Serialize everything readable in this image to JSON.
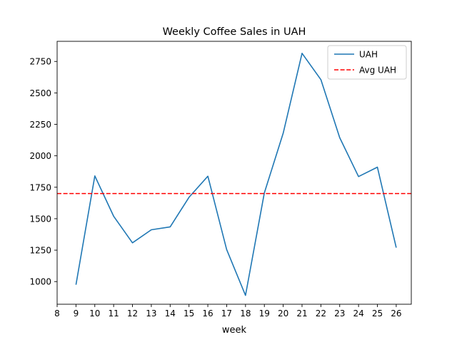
{
  "chart_data": {
    "type": "line",
    "title": "Weekly Coffee Sales in UAH",
    "xlabel": "week",
    "ylabel": "",
    "xlim": [
      8,
      26.8
    ],
    "ylim": [
      820,
      2910
    ],
    "x_ticks": [
      8,
      9,
      10,
      11,
      12,
      13,
      14,
      15,
      16,
      17,
      18,
      19,
      20,
      21,
      22,
      23,
      24,
      25,
      26
    ],
    "y_ticks": [
      1000,
      1250,
      1500,
      1750,
      2000,
      2250,
      2500,
      2750
    ],
    "grid": false,
    "legend_position": "upper right",
    "series": [
      {
        "name": "UAH",
        "style": "solid",
        "color": "#1f77b4",
        "x": [
          9,
          10,
          11,
          12,
          13,
          14,
          15,
          16,
          17,
          18,
          19,
          20,
          21,
          22,
          23,
          24,
          25,
          26
        ],
        "y": [
          975,
          1840,
          1520,
          1308,
          1412,
          1435,
          1670,
          1838,
          1255,
          890,
          1705,
          2180,
          2815,
          2605,
          2145,
          1835,
          1910,
          1270
        ]
      },
      {
        "name": "Avg UAH",
        "style": "dashed",
        "color": "#ff0000",
        "constant": 1700
      }
    ]
  }
}
